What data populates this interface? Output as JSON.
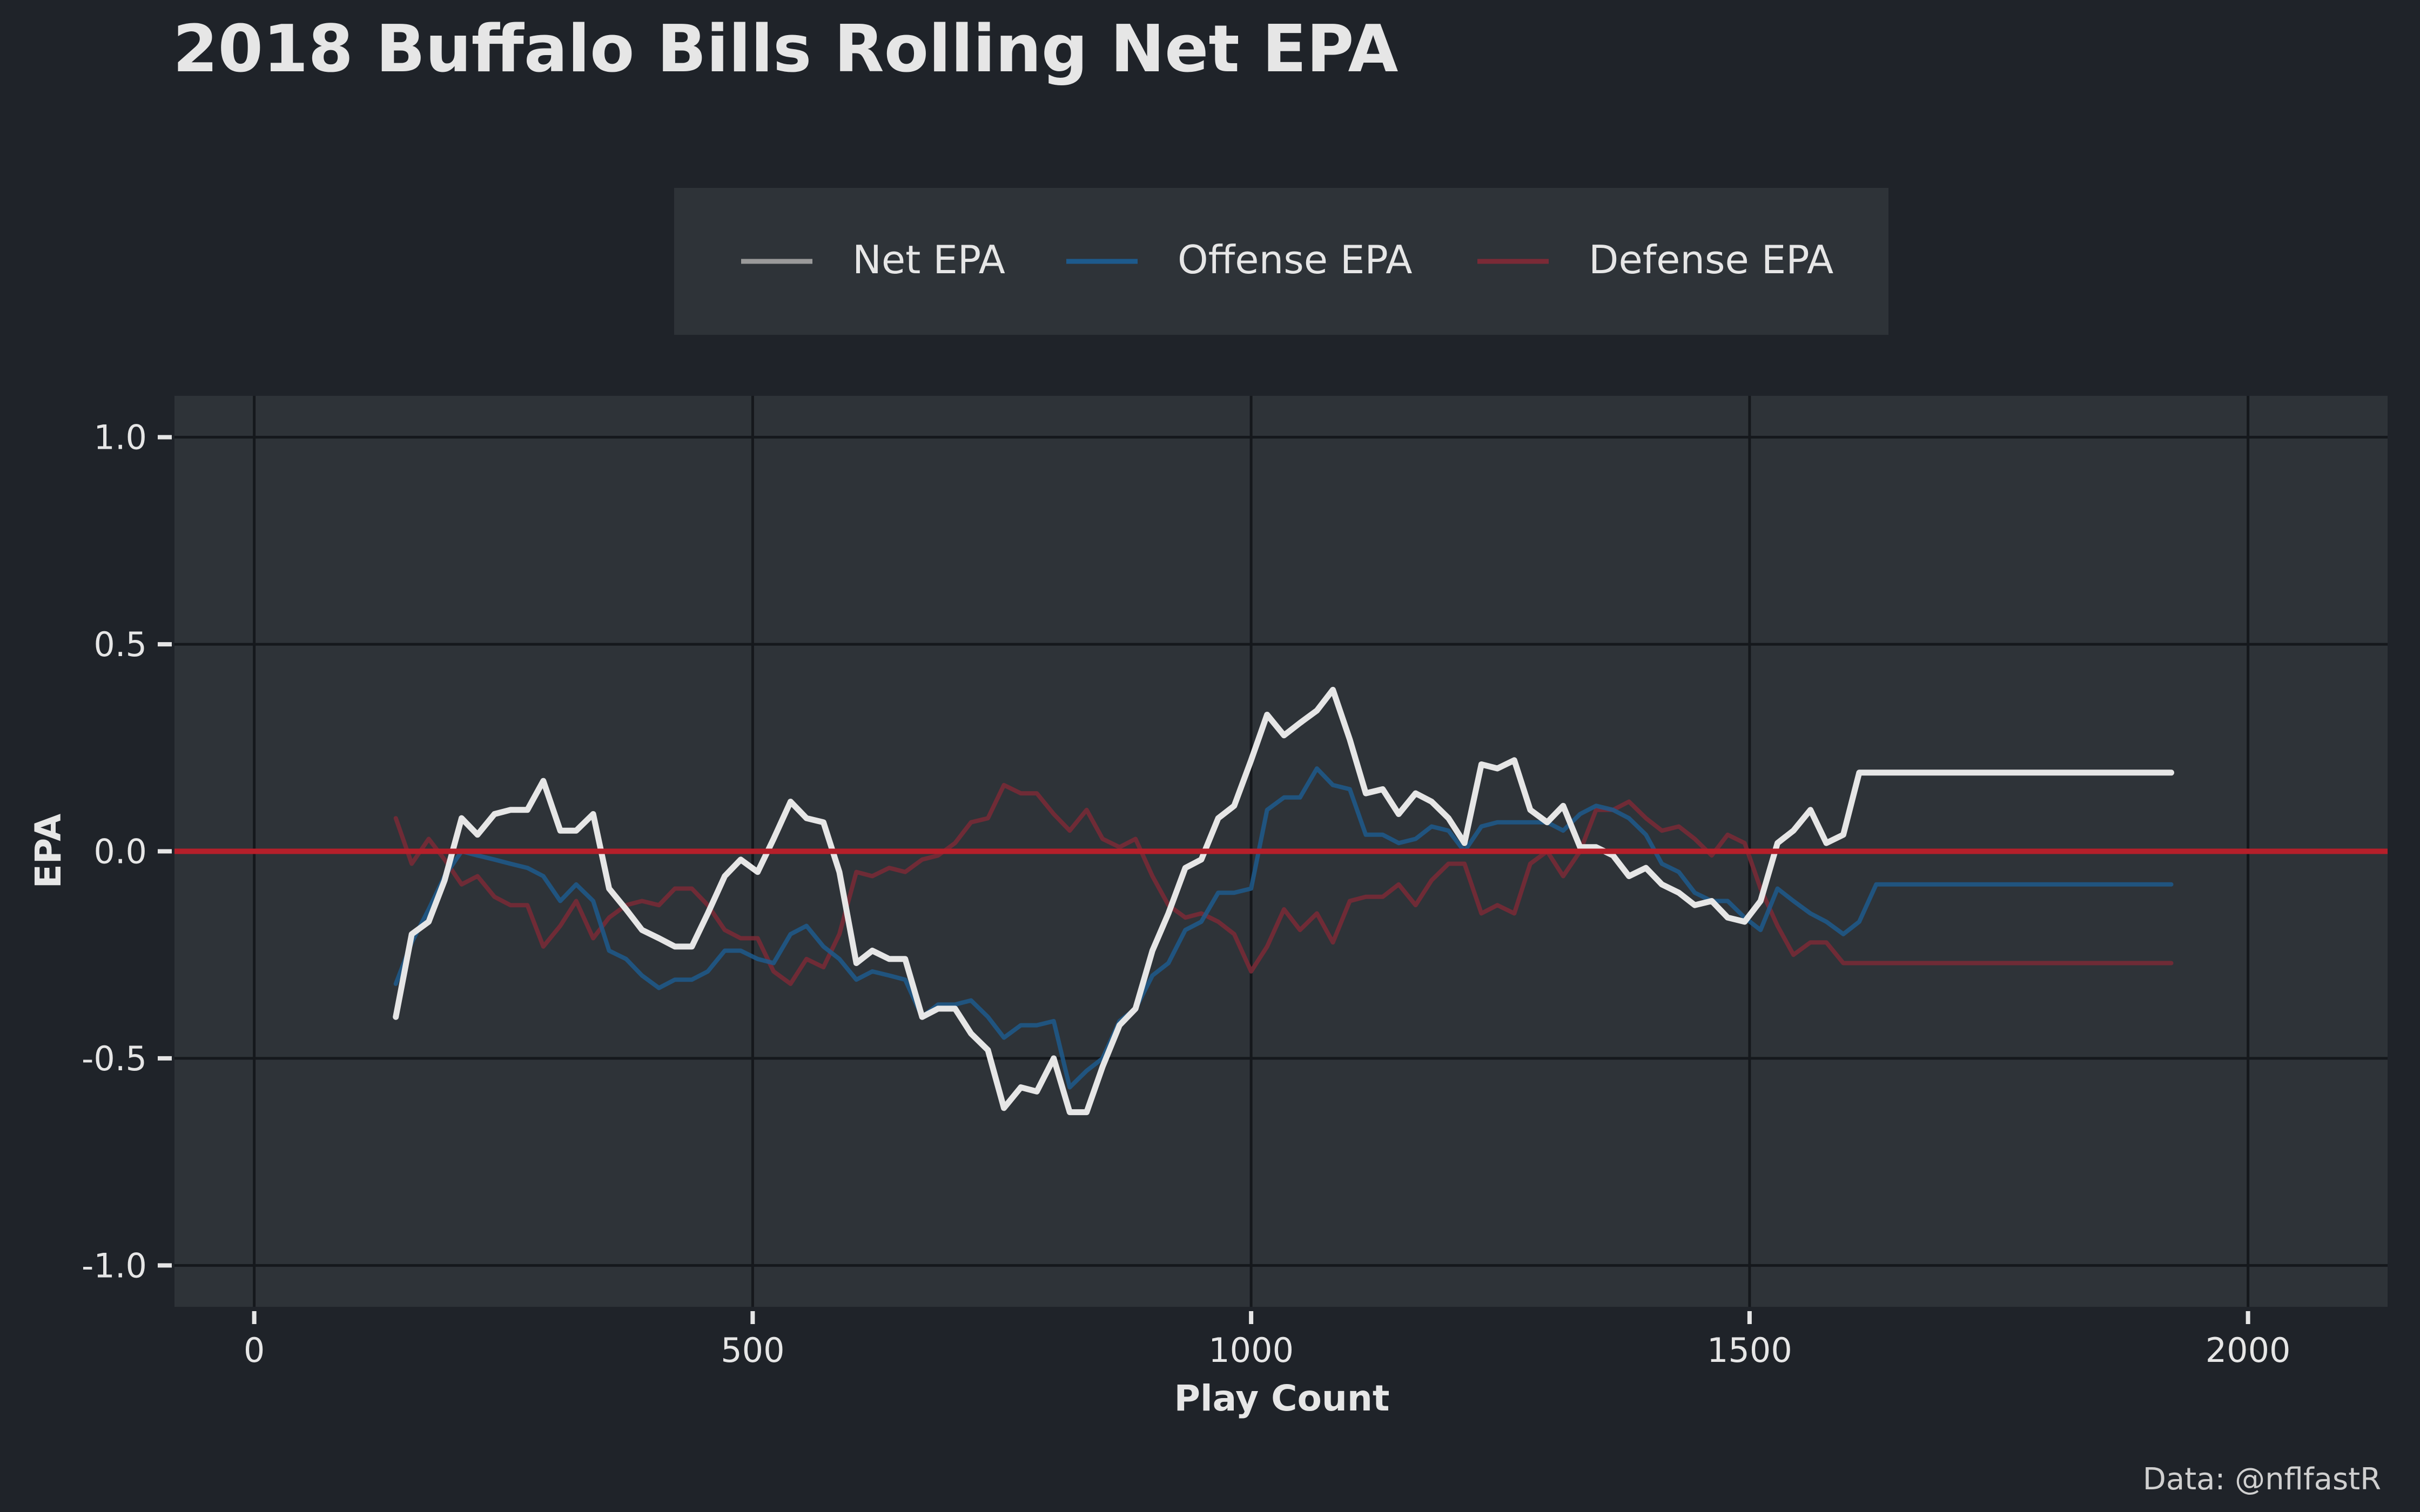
{
  "chart_data": {
    "type": "line",
    "title": "2018 Buffalo Bills Rolling Net EPA",
    "xlabel": "Play Count",
    "ylabel": "EPA",
    "xlim": [
      -80,
      2140
    ],
    "ylim": [
      -1.1,
      1.1
    ],
    "x_ticks": [
      0,
      500,
      1000,
      1500,
      2000
    ],
    "x_tick_labels": [
      "0",
      "500",
      "1000",
      "1500",
      "2000"
    ],
    "y_ticks": [
      1.0,
      0.5,
      0.0,
      -0.5,
      -1.0
    ],
    "y_tick_labels": [
      "1.0",
      "0.5",
      "0.0",
      "-0.5",
      "-1.0"
    ],
    "grid": true,
    "legend_position": "top-center",
    "reference_line": {
      "y": 0,
      "color": "#b51f2a"
    },
    "caption": "Data: @nflfastR",
    "x": [
      142,
      158,
      175,
      191,
      208,
      224,
      241,
      257,
      274,
      290,
      307,
      323,
      340,
      356,
      373,
      389,
      406,
      422,
      439,
      455,
      472,
      488,
      505,
      521,
      538,
      554,
      571,
      587,
      604,
      620,
      637,
      653,
      670,
      686,
      703,
      719,
      736,
      752,
      769,
      785,
      802,
      818,
      835,
      851,
      868,
      884,
      901,
      917,
      934,
      950,
      967,
      983,
      1000,
      1016,
      1033,
      1049,
      1066,
      1082,
      1099,
      1115,
      1132,
      1148,
      1165,
      1181,
      1198,
      1214,
      1231,
      1247,
      1264,
      1280,
      1297,
      1313,
      1330,
      1346,
      1363,
      1379,
      1396,
      1412,
      1429,
      1445,
      1462,
      1478,
      1495,
      1511,
      1528,
      1544,
      1561,
      1577,
      1594,
      1610,
      1627,
      1643,
      1660,
      1676,
      1693,
      1709,
      1726,
      1742,
      1759,
      1775,
      1792,
      1808,
      1825,
      1841,
      1858,
      1874,
      1891,
      1907,
      1923
    ],
    "series": [
      {
        "name": "Net EPA",
        "color": "#e6e6e6",
        "values": [
          -0.4,
          -0.2,
          -0.17,
          -0.07,
          0.08,
          0.04,
          0.09,
          0.1,
          0.1,
          0.17,
          0.05,
          0.05,
          0.09,
          -0.09,
          -0.14,
          -0.19,
          -0.21,
          -0.23,
          -0.23,
          -0.15,
          -0.06,
          -0.02,
          -0.05,
          0.03,
          0.12,
          0.08,
          0.07,
          -0.05,
          -0.27,
          -0.24,
          -0.26,
          -0.26,
          -0.4,
          -0.38,
          -0.38,
          -0.44,
          -0.48,
          -0.62,
          -0.57,
          -0.58,
          -0.5,
          -0.63,
          -0.63,
          -0.52,
          -0.42,
          -0.38,
          -0.24,
          -0.15,
          -0.04,
          -0.02,
          0.08,
          0.11,
          0.22,
          0.33,
          0.28,
          0.31,
          0.34,
          0.39,
          0.27,
          0.14,
          0.15,
          0.09,
          0.14,
          0.12,
          0.08,
          0.02,
          0.21,
          0.2,
          0.22,
          0.1,
          0.07,
          0.11,
          0.01,
          0.01,
          -0.01,
          -0.06,
          -0.04,
          -0.08,
          -0.1,
          -0.13,
          -0.12,
          -0.16,
          -0.17,
          -0.12,
          0.02,
          0.05,
          0.1,
          0.02,
          0.04,
          0.19,
          0.19,
          0.19,
          0.19,
          0.19,
          0.19,
          0.19,
          0.19,
          0.19,
          0.19,
          0.19,
          0.19,
          0.19,
          0.19,
          0.19,
          0.19,
          0.19,
          0.19,
          0.19,
          0.19
        ]
      },
      {
        "name": "Offense EPA",
        "color": "#1d5a8c",
        "values": [
          -0.32,
          -0.22,
          -0.14,
          -0.06,
          0.0,
          -0.01,
          -0.02,
          -0.03,
          -0.04,
          -0.06,
          -0.12,
          -0.08,
          -0.12,
          -0.24,
          -0.26,
          -0.3,
          -0.33,
          -0.31,
          -0.31,
          -0.29,
          -0.24,
          -0.24,
          -0.26,
          -0.27,
          -0.2,
          -0.18,
          -0.23,
          -0.26,
          -0.31,
          -0.29,
          -0.3,
          -0.31,
          -0.4,
          -0.37,
          -0.37,
          -0.36,
          -0.4,
          -0.45,
          -0.42,
          -0.42,
          -0.41,
          -0.57,
          -0.53,
          -0.5,
          -0.41,
          -0.38,
          -0.3,
          -0.27,
          -0.19,
          -0.17,
          -0.1,
          -0.1,
          -0.09,
          0.1,
          0.13,
          0.13,
          0.2,
          0.16,
          0.15,
          0.04,
          0.04,
          0.02,
          0.03,
          0.06,
          0.05,
          0.0,
          0.06,
          0.07,
          0.07,
          0.07,
          0.07,
          0.05,
          0.09,
          0.11,
          0.1,
          0.08,
          0.04,
          -0.03,
          -0.05,
          -0.1,
          -0.12,
          -0.12,
          -0.16,
          -0.19,
          -0.09,
          -0.12,
          -0.15,
          -0.17,
          -0.2,
          -0.17,
          -0.08,
          -0.08,
          -0.08,
          -0.08,
          -0.08,
          -0.08,
          -0.08,
          -0.08,
          -0.08,
          -0.08,
          -0.08,
          -0.08,
          -0.08,
          -0.08,
          -0.08,
          -0.08,
          -0.08,
          -0.08,
          -0.08
        ]
      },
      {
        "name": "Defense EPA",
        "color": "#7a2a36",
        "values": [
          0.08,
          -0.03,
          0.03,
          -0.02,
          -0.08,
          -0.06,
          -0.11,
          -0.13,
          -0.13,
          -0.23,
          -0.18,
          -0.12,
          -0.21,
          -0.16,
          -0.13,
          -0.12,
          -0.13,
          -0.09,
          -0.09,
          -0.13,
          -0.19,
          -0.21,
          -0.21,
          -0.29,
          -0.32,
          -0.26,
          -0.28,
          -0.2,
          -0.05,
          -0.06,
          -0.04,
          -0.05,
          -0.02,
          -0.01,
          0.02,
          0.07,
          0.08,
          0.16,
          0.14,
          0.14,
          0.09,
          0.05,
          0.1,
          0.03,
          0.01,
          0.03,
          -0.06,
          -0.13,
          -0.16,
          -0.15,
          -0.17,
          -0.2,
          -0.29,
          -0.23,
          -0.14,
          -0.19,
          -0.15,
          -0.22,
          -0.12,
          -0.11,
          -0.11,
          -0.08,
          -0.13,
          -0.07,
          -0.03,
          -0.03,
          -0.15,
          -0.13,
          -0.15,
          -0.03,
          0.0,
          -0.06,
          0.0,
          0.1,
          0.1,
          0.12,
          0.08,
          0.05,
          0.06,
          0.03,
          -0.01,
          0.04,
          0.02,
          -0.09,
          -0.18,
          -0.25,
          -0.22,
          -0.22,
          -0.27,
          -0.27,
          -0.27,
          -0.27,
          -0.27,
          -0.27,
          -0.27,
          -0.27,
          -0.27,
          -0.27,
          -0.27,
          -0.27,
          -0.27,
          -0.27,
          -0.27,
          -0.27,
          -0.27,
          -0.27,
          -0.27,
          -0.27,
          -0.27
        ]
      }
    ]
  }
}
